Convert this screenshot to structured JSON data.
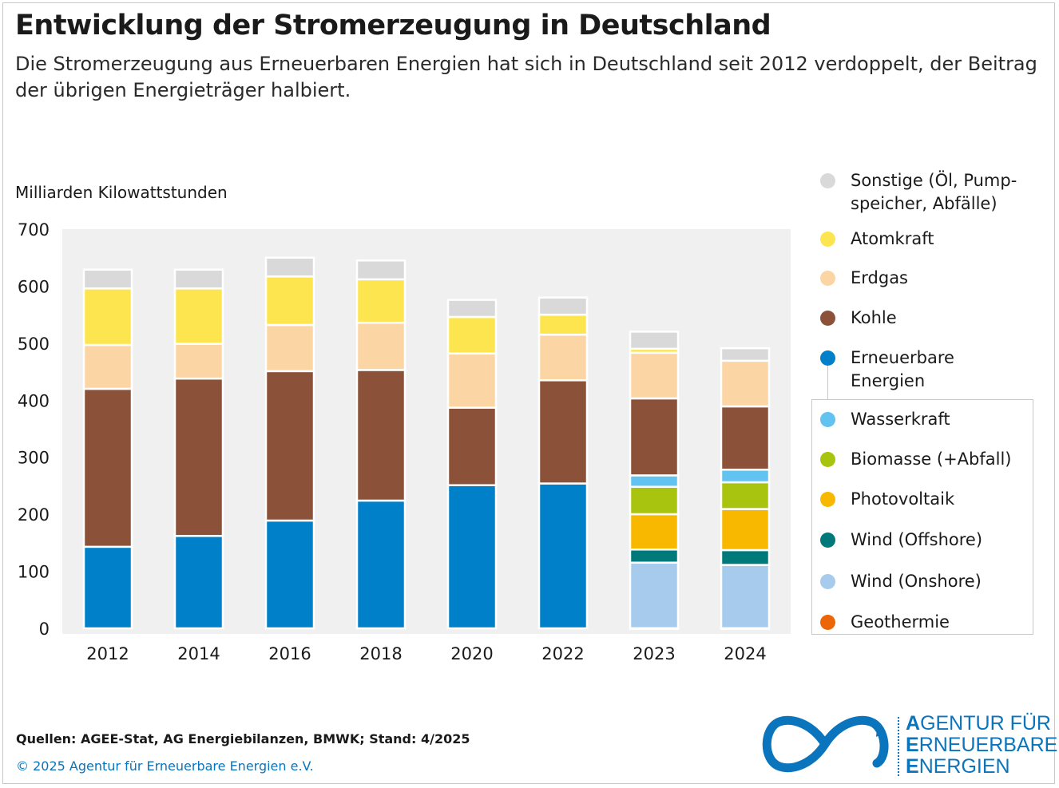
{
  "title": "Entwicklung der Stromerzeugung in Deutschland",
  "subtitle": "Die Stromerzeugung aus Erneuerbaren Energien hat sich in Deutschland seit 2012 verdoppelt, der Beitrag der übrigen Energieträger halbiert.",
  "unit_label": "Milliarden Kilowattstunden",
  "source": "Quellen: AGEE-Stat, AG Energiebilanzen, BMWK; Stand: 4/2025",
  "copyright": "© 2025 Agentur für Erneuerbare Energien e.V.",
  "logo": {
    "lines": [
      {
        "first": "A",
        "rest": "GENTUR FÜR"
      },
      {
        "first": "E",
        "rest": "RNEUERBARE"
      },
      {
        "first": "E",
        "rest": "NERGIEN"
      }
    ]
  },
  "colors": {
    "Geothermie": "#ec6608",
    "Wind (Onshore)": "#a7cbec",
    "Wind (Offshore)": "#00797a",
    "Photovoltaik": "#f9b800",
    "Biomasse (+Abfall)": "#a9c40f",
    "Wasserkraft": "#62c2f0",
    "Erneuerbare Energien": "#0080c8",
    "Kohle": "#8b5239",
    "Erdgas": "#fcd5a5",
    "Atomkraft": "#fde54f",
    "Sonstige": "#d9d9d9",
    "plot_background": "#f0f0f0",
    "logo": "#0a74bc"
  },
  "legend": [
    {
      "label": "Sonstige (Öl, Pump-\nspeicher, Abfälle)",
      "color": "#d9d9d9"
    },
    {
      "label": "Atomkraft",
      "color": "#fde54f"
    },
    {
      "label": "Erdgas",
      "color": "#fcd5a5"
    },
    {
      "label": "Kohle",
      "color": "#8b5239"
    },
    {
      "label": "Erneuerbare\nEnergien",
      "color": "#0080c8"
    },
    {
      "label": "Wasserkraft",
      "color": "#62c2f0"
    },
    {
      "label": "Biomasse (+Abfall)",
      "color": "#a9c40f"
    },
    {
      "label": "Photovoltaik",
      "color": "#f9b800"
    },
    {
      "label": "Wind (Offshore)",
      "color": "#00797a"
    },
    {
      "label": "Wind (Onshore)",
      "color": "#a7cbec"
    },
    {
      "label": "Geothermie",
      "color": "#ec6608"
    }
  ],
  "chart_data": {
    "type": "bar",
    "stacked": true,
    "categories": [
      "2012",
      "2014",
      "2016",
      "2018",
      "2020",
      "2022",
      "2023",
      "2024"
    ],
    "ylabel": "Milliarden Kilowattstunden",
    "ylim": [
      0,
      700
    ],
    "yticks": [
      0,
      100,
      200,
      300,
      400,
      500,
      600,
      700
    ],
    "grid": false,
    "legend_position": "right",
    "series": [
      {
        "name": "Erneuerbare Energien",
        "values": [
          143,
          162,
          189,
          224,
          251,
          254,
          null,
          null
        ]
      },
      {
        "name": "Geothermie",
        "values": [
          null,
          null,
          null,
          null,
          null,
          null,
          0.2,
          0.2
        ]
      },
      {
        "name": "Wind (Onshore)",
        "values": [
          null,
          null,
          null,
          null,
          null,
          null,
          115,
          111
        ]
      },
      {
        "name": "Wind (Offshore)",
        "values": [
          null,
          null,
          null,
          null,
          null,
          null,
          23,
          26
        ]
      },
      {
        "name": "Photovoltaik",
        "values": [
          null,
          null,
          null,
          null,
          null,
          null,
          62,
          72
        ]
      },
      {
        "name": "Biomasse (+Abfall)",
        "values": [
          null,
          null,
          null,
          null,
          null,
          null,
          48,
          47
        ]
      },
      {
        "name": "Wasserkraft",
        "values": [
          null,
          null,
          null,
          null,
          null,
          null,
          20,
          22
        ]
      },
      {
        "name": "Kohle",
        "values": [
          277,
          276,
          262,
          229,
          136,
          181,
          135,
          111
        ]
      },
      {
        "name": "Erdgas",
        "values": [
          77,
          61,
          81,
          83,
          95,
          80,
          80,
          80
        ]
      },
      {
        "name": "Atomkraft",
        "values": [
          99,
          97,
          85,
          76,
          64,
          35,
          7,
          0
        ]
      },
      {
        "name": "Sonstige (Öl, Pumpspeicher, Abfälle)",
        "values": [
          33,
          33,
          33,
          33,
          30,
          30,
          30,
          22
        ]
      }
    ]
  }
}
